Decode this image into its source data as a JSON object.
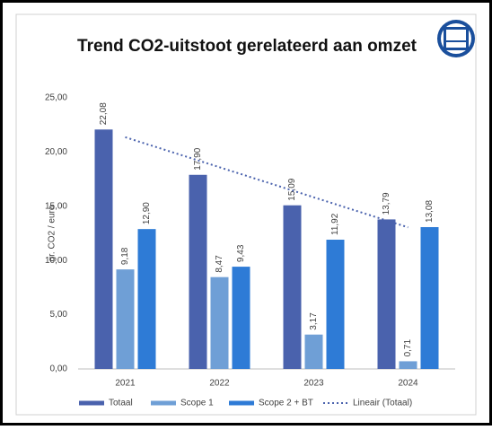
{
  "chart_data": {
    "type": "bar",
    "title": "Trend CO2-uitstoot gerelateerd aan omzet",
    "y_label": "gr. CO2 / euro",
    "categories": [
      "2021",
      "2022",
      "2023",
      "2024"
    ],
    "series": [
      {
        "name": "Totaal",
        "color": "#4a62ad",
        "values": [
          22.08,
          17.9,
          15.09,
          13.79
        ],
        "value_labels": [
          "22,08",
          "17,90",
          "15,09",
          "13,79"
        ]
      },
      {
        "name": "Scope 1",
        "color": "#6f9fd6",
        "values": [
          9.18,
          8.47,
          3.17,
          0.71
        ],
        "value_labels": [
          "9,18",
          "8,47",
          "3,17",
          "0,71"
        ]
      },
      {
        "name": "Scope 2 + BT",
        "color": "#2e7bd6",
        "values": [
          12.9,
          9.43,
          11.92,
          13.08
        ],
        "value_labels": [
          "12,90",
          "9,43",
          "11,92",
          "13,08"
        ]
      },
      {
        "name": "Lineair (Totaal)",
        "type": "trend",
        "color": "#4a62ad",
        "dashed": true,
        "values": [
          21.37,
          18.6,
          15.83,
          13.06
        ]
      }
    ],
    "ylim": [
      0,
      25
    ],
    "yticks": [
      {
        "value": 0,
        "label": "0,00"
      },
      {
        "value": 5,
        "label": "5,00"
      },
      {
        "value": 10,
        "label": "10,00"
      },
      {
        "value": 15,
        "label": "15,00"
      },
      {
        "value": 20,
        "label": "20,00"
      },
      {
        "value": 25,
        "label": "25,00"
      }
    ],
    "grid": false,
    "legend": "bottom"
  }
}
